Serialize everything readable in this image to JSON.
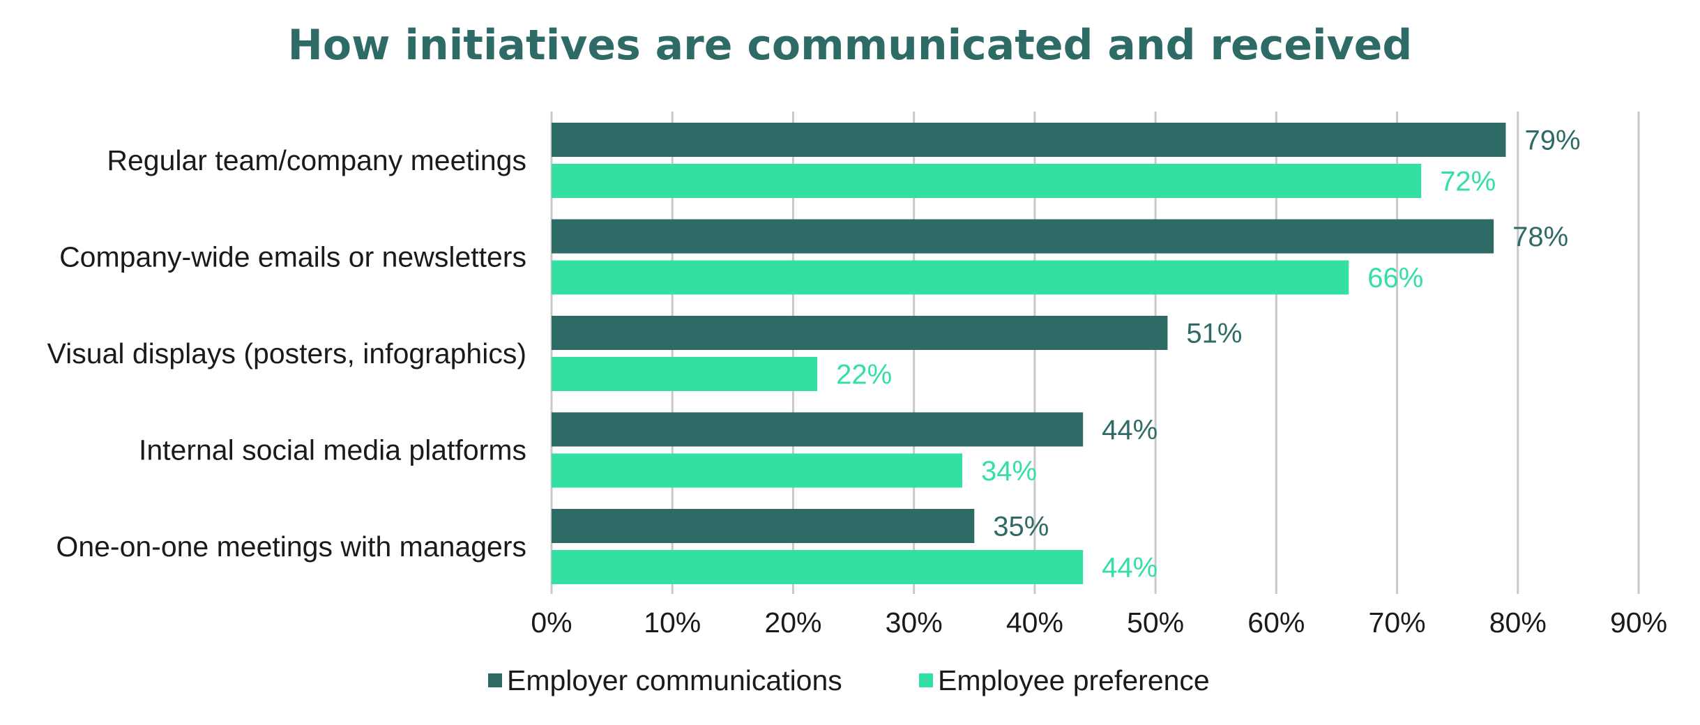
{
  "chart_data": {
    "type": "bar",
    "orientation": "horizontal",
    "title": "How initiatives are communicated and received",
    "categories": [
      "Regular team/company meetings",
      "Company-wide emails or newsletters",
      "Visual displays (posters, infographics)",
      "Internal social media platforms",
      "One-on-one meetings with managers"
    ],
    "series": [
      {
        "name": "Employer communications",
        "color": "#2e6b67",
        "values": [
          79,
          78,
          51,
          44,
          35
        ],
        "labels": [
          "79%",
          "78%",
          "51%",
          "44%",
          "35%"
        ]
      },
      {
        "name": "Employee preference",
        "color": "#34e0a1",
        "values": [
          72,
          66,
          22,
          34,
          44
        ],
        "labels": [
          "72%",
          "66%",
          "22%",
          "34%",
          "44%"
        ]
      }
    ],
    "xlim": [
      0,
      90
    ],
    "xticks": [
      0,
      10,
      20,
      30,
      40,
      50,
      60,
      70,
      80,
      90
    ],
    "xtick_labels": [
      "0%",
      "10%",
      "20%",
      "30%",
      "40%",
      "50%",
      "60%",
      "70%",
      "80%",
      "90%"
    ],
    "grid": "vertical",
    "legend_position": "bottom"
  }
}
